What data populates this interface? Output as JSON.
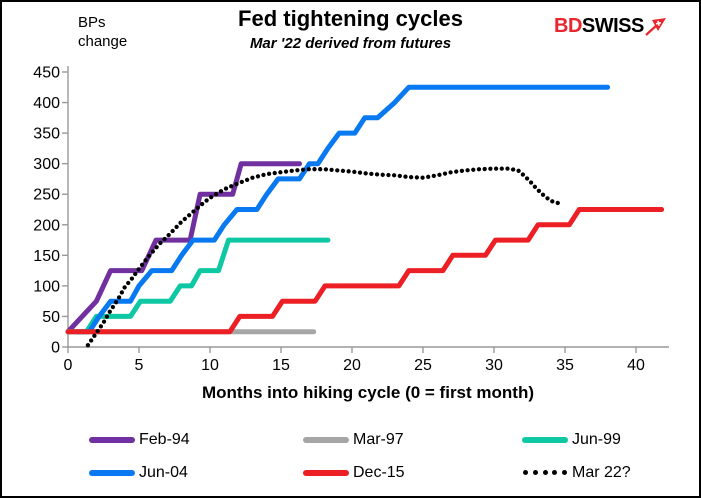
{
  "header": {
    "title": "Fed tightening cycles",
    "subtitle": "Mar '22 derived from futures",
    "y_axis_unit": "BPs change",
    "logo": {
      "part1": "BD",
      "part2": "SWISS",
      "icon": "red-arrow-flag-icon"
    }
  },
  "chart_data": {
    "type": "line",
    "title": "Fed tightening cycles",
    "subtitle": "Mar '22 derived from futures",
    "xlabel": "Months into hiking cycle (0 = first month)",
    "ylabel": "BPs change",
    "xlim": [
      0,
      42.5
    ],
    "ylim": [
      0,
      450
    ],
    "x_ticks": [
      0,
      5,
      10,
      15,
      20,
      25,
      30,
      35,
      40
    ],
    "y_ticks": [
      0,
      50,
      100,
      150,
      200,
      250,
      300,
      350,
      400,
      450
    ],
    "grid": false,
    "legend_position": "bottom",
    "axis_color": "#999999",
    "series": [
      {
        "name": "Feb-94",
        "color": "#7030A0",
        "style": "solid",
        "points": [
          [
            0,
            25
          ],
          [
            1,
            50
          ],
          [
            2,
            75
          ],
          [
            3,
            125
          ],
          [
            5.2,
            125
          ],
          [
            6.2,
            175
          ],
          [
            8.6,
            175
          ],
          [
            9.3,
            250
          ],
          [
            11.6,
            250
          ],
          [
            12.2,
            300
          ],
          [
            16.3,
            300
          ]
        ]
      },
      {
        "name": "Mar-97",
        "color": "#A6A6A6",
        "style": "solid",
        "points": [
          [
            0,
            25
          ],
          [
            17.3,
            25
          ]
        ]
      },
      {
        "name": "Jun-99",
        "color": "#0EC7A3",
        "style": "solid",
        "points": [
          [
            0,
            25
          ],
          [
            1.3,
            25
          ],
          [
            2,
            50
          ],
          [
            4.4,
            50
          ],
          [
            5.1,
            75
          ],
          [
            7.2,
            75
          ],
          [
            7.9,
            100
          ],
          [
            8.7,
            100
          ],
          [
            9.3,
            125
          ],
          [
            10.6,
            125
          ],
          [
            11.3,
            175
          ],
          [
            18.3,
            175
          ]
        ]
      },
      {
        "name": "Jun-04",
        "color": "#0879F0",
        "style": "solid",
        "points": [
          [
            0.6,
            25
          ],
          [
            1.5,
            25
          ],
          [
            2.2,
            50
          ],
          [
            3,
            75
          ],
          [
            4.4,
            75
          ],
          [
            5,
            100
          ],
          [
            5.9,
            125
          ],
          [
            7.3,
            125
          ],
          [
            8,
            150
          ],
          [
            8.8,
            175
          ],
          [
            10.3,
            175
          ],
          [
            11,
            200
          ],
          [
            11.9,
            225
          ],
          [
            13.3,
            225
          ],
          [
            14,
            250
          ],
          [
            14.8,
            275
          ],
          [
            16.3,
            275
          ],
          [
            17,
            300
          ],
          [
            17.6,
            300
          ],
          [
            18.3,
            325
          ],
          [
            19.1,
            350
          ],
          [
            20.2,
            350
          ],
          [
            20.9,
            375
          ],
          [
            21.8,
            375
          ],
          [
            23,
            400
          ],
          [
            24,
            425
          ],
          [
            38,
            425
          ]
        ]
      },
      {
        "name": "Dec-15",
        "color": "#EC2024",
        "style": "solid",
        "points": [
          [
            0,
            25
          ],
          [
            11.4,
            25
          ],
          [
            12.1,
            50
          ],
          [
            14.4,
            50
          ],
          [
            15.1,
            75
          ],
          [
            17.4,
            75
          ],
          [
            18.1,
            100
          ],
          [
            23.3,
            100
          ],
          [
            24,
            125
          ],
          [
            26.4,
            125
          ],
          [
            27.1,
            150
          ],
          [
            29.4,
            150
          ],
          [
            30.1,
            175
          ],
          [
            32.4,
            175
          ],
          [
            33.1,
            200
          ],
          [
            35.3,
            200
          ],
          [
            36,
            225
          ],
          [
            41.8,
            225
          ]
        ]
      },
      {
        "name": "Mar 22?",
        "color": "#000000",
        "style": "dotted",
        "points": [
          [
            1.4,
            3
          ],
          [
            2,
            23
          ],
          [
            2.5,
            40
          ],
          [
            3,
            60
          ],
          [
            3.5,
            77
          ],
          [
            4,
            98
          ],
          [
            4.5,
            112
          ],
          [
            5,
            128
          ],
          [
            5.5,
            143
          ],
          [
            6,
            157
          ],
          [
            6.5,
            170
          ],
          [
            7,
            181
          ],
          [
            7.5,
            193
          ],
          [
            8,
            205
          ],
          [
            8.5,
            215
          ],
          [
            9,
            225
          ],
          [
            9.5,
            235
          ],
          [
            10,
            244
          ],
          [
            11,
            258
          ],
          [
            12,
            268
          ],
          [
            13,
            277
          ],
          [
            14,
            283
          ],
          [
            15,
            286
          ],
          [
            16,
            289
          ],
          [
            17,
            291
          ],
          [
            18,
            291
          ],
          [
            19,
            289
          ],
          [
            20,
            287
          ],
          [
            21,
            284
          ],
          [
            22,
            282
          ],
          [
            23,
            281
          ],
          [
            24,
            278
          ],
          [
            25,
            277
          ],
          [
            26,
            281
          ],
          [
            27,
            286
          ],
          [
            28,
            289
          ],
          [
            29,
            291
          ],
          [
            30,
            292
          ],
          [
            31,
            292
          ],
          [
            31.7,
            289
          ],
          [
            32,
            283
          ],
          [
            32.5,
            272
          ],
          [
            33,
            259
          ],
          [
            33.5,
            248
          ],
          [
            34,
            239
          ],
          [
            34.6,
            235
          ]
        ]
      }
    ]
  }
}
